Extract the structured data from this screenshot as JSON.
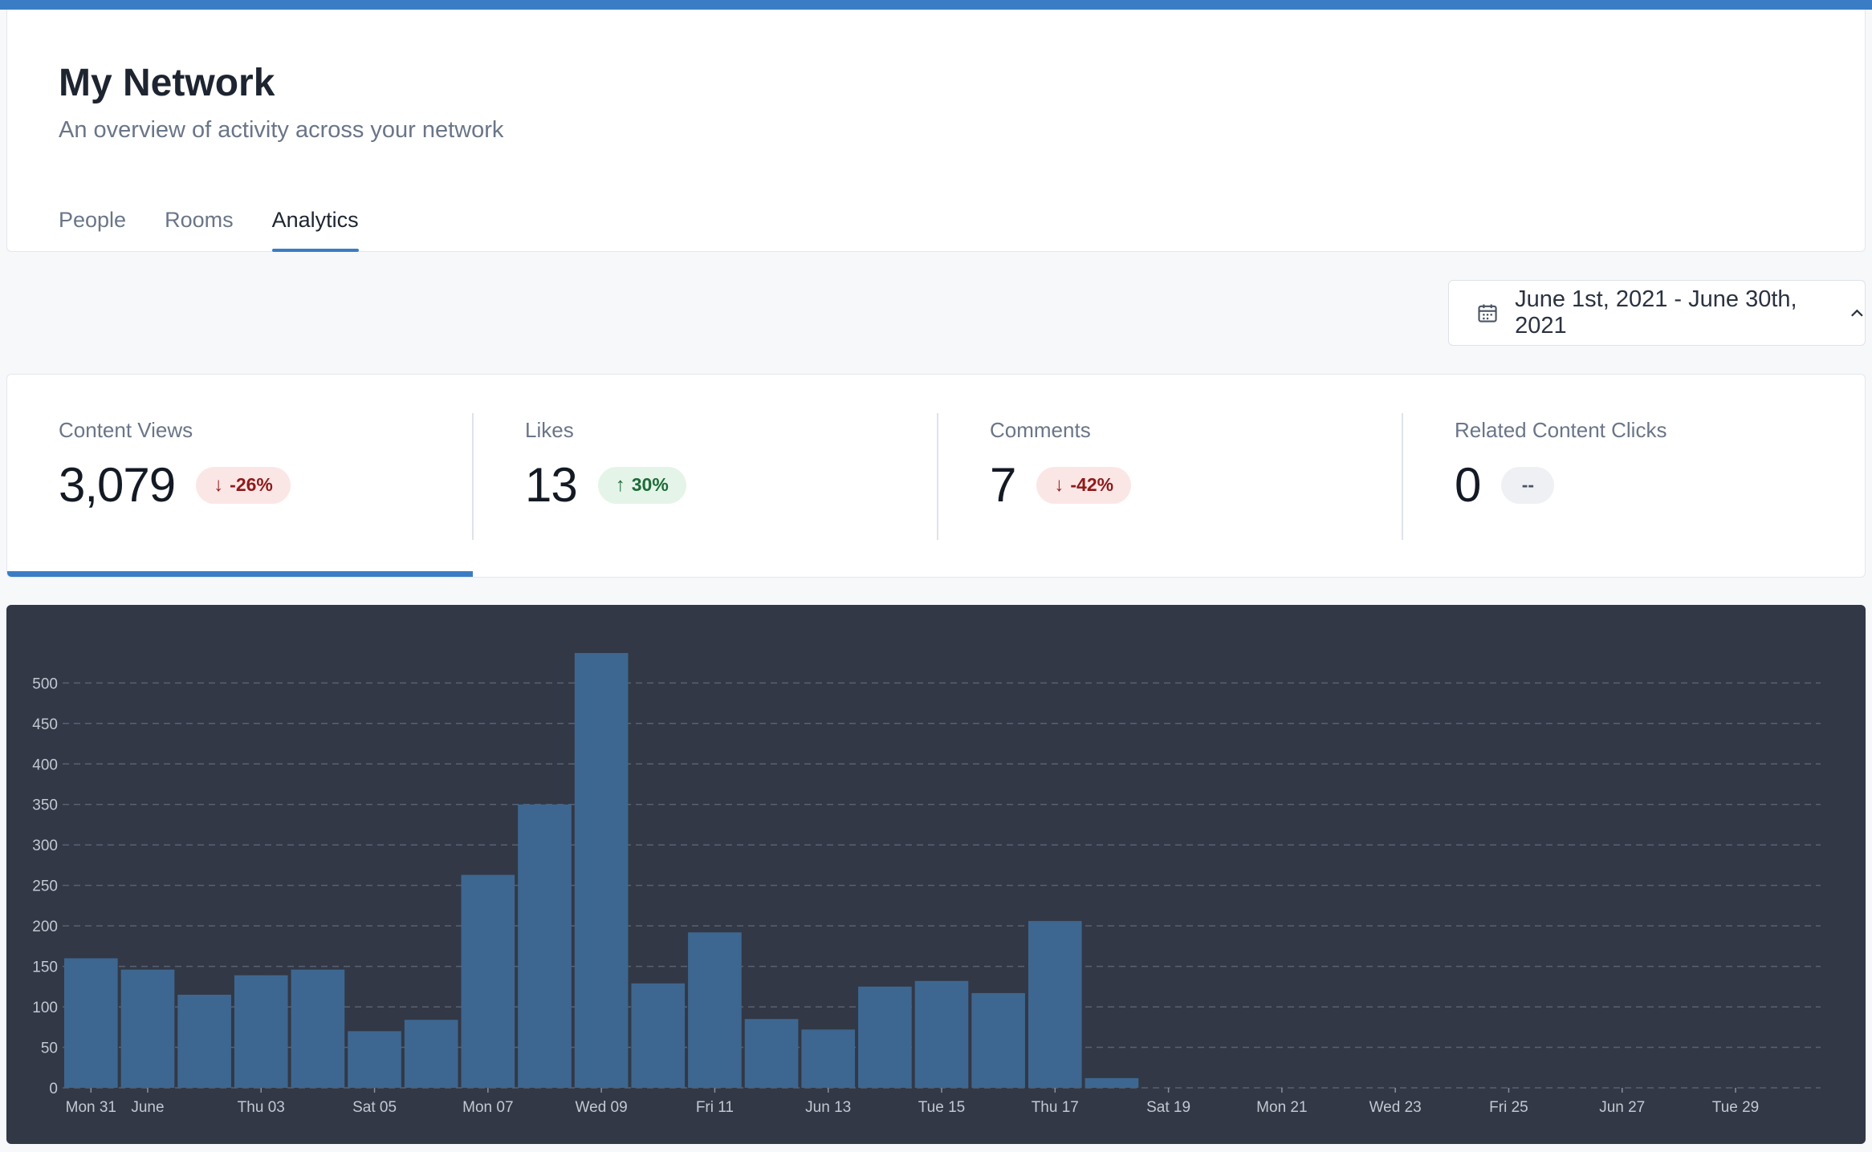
{
  "header": {
    "title": "My Network",
    "subtitle": "An overview of activity across your network",
    "tabs": [
      {
        "label": "People",
        "active": false
      },
      {
        "label": "Rooms",
        "active": false
      },
      {
        "label": "Analytics",
        "active": true
      }
    ]
  },
  "date_picker": {
    "range_label": "June 1st, 2021 - June 30th, 2021",
    "icon": "calendar-icon",
    "toggle_icon": "chevron-up-icon"
  },
  "stats": [
    {
      "label": "Content Views",
      "value": "3,079",
      "change": "-26%",
      "direction": "down",
      "selected": true
    },
    {
      "label": "Likes",
      "value": "13",
      "change": "30%",
      "direction": "up",
      "selected": false
    },
    {
      "label": "Comments",
      "value": "7",
      "change": "-42%",
      "direction": "down",
      "selected": false
    },
    {
      "label": "Related Content Clicks",
      "value": "0",
      "change": "--",
      "direction": "neutral",
      "selected": false
    }
  ],
  "colors": {
    "accent": "#3a7dc4",
    "bar": "#3d6790",
    "chart_bg": "#323846",
    "down_bg": "#fbe6e6",
    "down_text": "#8e1a1a",
    "up_bg": "#e4f4e8",
    "up_text": "#1e6b37"
  },
  "chart_data": {
    "type": "bar",
    "categories": [
      "May 31",
      "Jun 01",
      "Jun 02",
      "Jun 03",
      "Jun 04",
      "Jun 05",
      "Jun 06",
      "Jun 07",
      "Jun 08",
      "Jun 09",
      "Jun 10",
      "Jun 11",
      "Jun 12",
      "Jun 13",
      "Jun 14",
      "Jun 15",
      "Jun 16",
      "Jun 17",
      "Jun 18",
      "Jun 19",
      "Jun 20",
      "Jun 21",
      "Jun 22",
      "Jun 23",
      "Jun 24",
      "Jun 25",
      "Jun 26",
      "Jun 27",
      "Jun 28",
      "Jun 29",
      "Jun 30"
    ],
    "values": [
      160,
      146,
      115,
      139,
      146,
      70,
      84,
      263,
      350,
      537,
      129,
      192,
      85,
      72,
      125,
      132,
      117,
      206,
      12,
      0,
      0,
      0,
      0,
      0,
      0,
      0,
      0,
      0,
      0,
      0,
      0
    ],
    "xtick_labels": [
      {
        "index": 0,
        "label": "Mon 31"
      },
      {
        "index": 1,
        "label": "June"
      },
      {
        "index": 3,
        "label": "Thu 03"
      },
      {
        "index": 5,
        "label": "Sat 05"
      },
      {
        "index": 7,
        "label": "Mon 07"
      },
      {
        "index": 9,
        "label": "Wed 09"
      },
      {
        "index": 11,
        "label": "Fri 11"
      },
      {
        "index": 13,
        "label": "Jun 13"
      },
      {
        "index": 15,
        "label": "Tue 15"
      },
      {
        "index": 17,
        "label": "Thu 17"
      },
      {
        "index": 19,
        "label": "Sat 19"
      },
      {
        "index": 21,
        "label": "Mon 21"
      },
      {
        "index": 23,
        "label": "Wed 23"
      },
      {
        "index": 25,
        "label": "Fri 25"
      },
      {
        "index": 27,
        "label": "Jun 27"
      },
      {
        "index": 29,
        "label": "Tue 29"
      }
    ],
    "yticks": [
      0,
      50,
      100,
      150,
      200,
      250,
      300,
      350,
      400,
      450,
      500
    ],
    "ylim": [
      0,
      537
    ],
    "grid": "horizontal dashed",
    "title": "",
    "xlabel": "",
    "ylabel": ""
  }
}
